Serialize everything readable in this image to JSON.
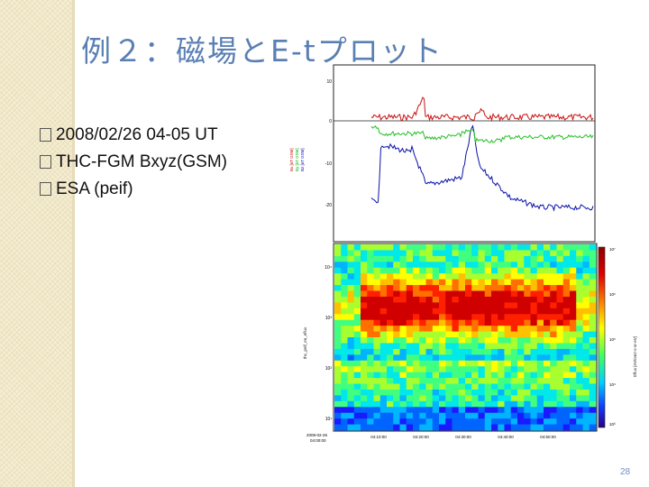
{
  "slide": {
    "title": "例２：磁場とE-tプロット",
    "page_number": "28",
    "bullets": [
      {
        "text": "2008/02/26 04-05 UT"
      },
      {
        "text": "THC-FGM Bxyz(GSM)"
      },
      {
        "text": "ESA (peif)"
      }
    ]
  },
  "top_plot": {
    "y_ticks": [
      "10",
      "0",
      "-10",
      "-20"
    ],
    "legend": [
      {
        "label": "Bx [nT GSM]",
        "color": "#c00000"
      },
      {
        "label": "By [nT GSM]",
        "color": "#00b000"
      },
      {
        "label": "Bz [nT GSM]",
        "color": "#0000c0"
      }
    ]
  },
  "bottom_plot": {
    "y_label": "thc_peif_en_eflux",
    "y_ticks": [
      "10⁴",
      "10³",
      "10²",
      "10¹"
    ],
    "x_ticks": [
      "04:10:00",
      "04:20:00",
      "04:30:00",
      "04:40:00",
      "04:50:00"
    ],
    "start_label_line1": "2008-02-26",
    "start_label_line2": "04:00:00",
    "colorbar_ticks": [
      "10⁷",
      "10⁶",
      "10⁵",
      "10⁴",
      "10³"
    ],
    "colorbar_label": "Eflux [eV/cm2-s-sr-eV]"
  }
}
